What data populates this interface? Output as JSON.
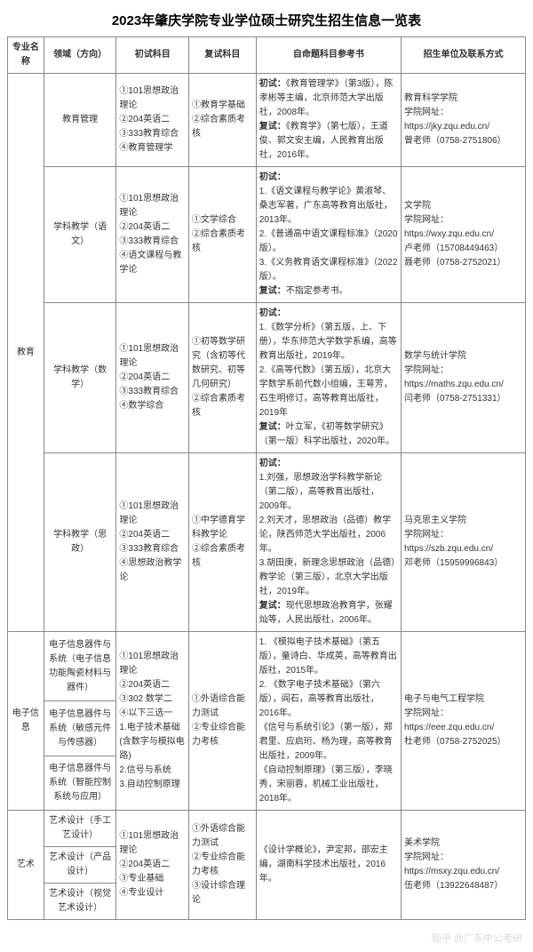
{
  "title": "2023年肇庆学院专业学位硕士研究生招生信息一览表",
  "header": {
    "c1": "专业名称",
    "c2": "领域（方向）",
    "c3": "初试科目",
    "c4": "复试科目",
    "c5": "自命题科目参考书",
    "c6": "招生单位及联系方式"
  },
  "edu": {
    "major": "教育",
    "r1": {
      "field": "教育管理",
      "prelim": "①101思想政治理论\n②204英语二\n③333教育综合\n④教育管理学",
      "retest": "①教育学基础\n②综合素质考核",
      "ref_label_init": "初试：",
      "ref_init": "《教育管理学》（第3版），陈孝彬等主编，北京师范大学出版社，2008年。",
      "ref_label_re": "复试：",
      "ref_re": "《教育学》（第七版），王道俊、郭文安主编，人民教育出版社，2016年。",
      "contact": "教育科学学院\n学院网址：\nhttps://jky.zqu.edu.cn/\n曾老师（0758-2751806）"
    },
    "r2": {
      "field": "学科教学（语文）",
      "prelim": "①101思想政治理论\n②204英语二\n③333教育综合\n④语文课程与教学论",
      "retest": "①文学综合\n②综合素质考核",
      "ref_label_init": "初试：",
      "ref_init": "1.《语文课程与教学论》黄淑琴、桑志军著，广东高等教育出版社，2013年。\n2.《普通高中语文课程标准》（2020版）。\n3.《义务教育语文课程标准》（2022版）。",
      "ref_label_re": "复试：",
      "ref_re": "不指定参考书。",
      "contact": "文学院\n学院网址：\nhttps://wxy.zqu.edu.cn/\n卢老师（15708449463）\n聂老师（0758-2752021）"
    },
    "r3": {
      "field": "学科教学（数学）",
      "prelim": "①101思想政治理论\n②204英语二\n③333教育综合\n④数学综合",
      "retest": "①初等数学研究（含初等代数研究、初等几何研究）\n②综合素质考核",
      "ref_label_init": "初试：",
      "ref_init": "1.《数学分析》（第五版，上、下册），华东师范大学数学系编，高等教育出版社，2019年。\n2.《高等代数》（第五版），北京大学数学系前代数小组编，王萼芳，石生明修订，高等教育出版社，2019年",
      "ref_label_re": "复试：",
      "ref_re": "叶立军，《初等数学研究》（第一版）科学出版社，2020年。",
      "contact": "数学与统计学院\n学院网址：\nhttps://maths.zqu.edu.cn/\n闫老师（0758-2751331）"
    },
    "r4": {
      "field": "学科教学（思政）",
      "prelim": "①101思想政治理论\n②204英语二\n③333教育综合\n④思想政治教学论",
      "retest": "①中学德育学科教学论\n②综合素质考核",
      "ref_label_init": "初试：",
      "ref_init": "1.刘强，思想政治学科教学新论（第二版），高等教育出版社，2009年。\n2.刘天才，思想政治（品德）教学论，陕西师范大学出版社，2006年。\n3.胡田庚，新理念思想政治（品德）教学论（第三版），北京大学出版社，2019年。",
      "ref_label_re": "复试：",
      "ref_re": "现代思想政治教育学，张耀灿等，人民出版社，2006年。",
      "contact": "马克思主义学院\n学院网址：\nhttps://szb.zqu.edu.cn/\n邓老师（15959996843）"
    }
  },
  "ee": {
    "major": "电子信息",
    "field1": "电子信息器件与系统（电子信息功能陶瓷材料与器件）",
    "field2": "电子信息器件与系统（敏感元件与传感器）",
    "field3": "电子信息器件与系统（智能控制系统与应用）",
    "prelim": "①101思想政治理论\n②204英语二\n③302 数学二\n④以下三选一\n1.电子技术基础(含数字与模拟电路)\n2.信号与系统\n3.自动控制原理",
    "retest": "①外语综合能力测试\n②专业综合能力考核",
    "ref": "1. 《模拟电子技术基础》（第五版），童诗白、华成英，高等教育出版社，2015年。\n2. 《数字电子技术基础》（第六版），阎石，高等教育出版社，2016年。\n《信号与系统引论》（第一版），郑君里、应启珩、杨为理，高等教育出版社，2009年。\n《自动控制原理》（第三版），李晓秀，宋丽蓉，机械工业出版社，2018年。",
    "contact": "电子与电气工程学院\n学院网址：\nhttps://eee.zqu.edu.cn/\n杜老师（0758-2752025）"
  },
  "art": {
    "major": "艺术",
    "field1": "艺术设计（手工艺设计）",
    "field2": "艺术设计（产品设计）",
    "field3": "艺术设计（视觉艺术设计）",
    "prelim": "①101思想政治理论\n②204英语二\n③专业基础\n④专业设计",
    "retest": "①外语综合能力测试\n②专业综合能力考核\n③设计综合理论",
    "ref": "《设计学概论》，尹定邦，邵宏主编，湖南科学技术出版社，2016年。",
    "contact": "美术学院\n学院网址：\nhttps://msxy.zqu.edu.cn/\n伍老师（13922648487）"
  },
  "watermark": "知乎 @广东中公考研"
}
